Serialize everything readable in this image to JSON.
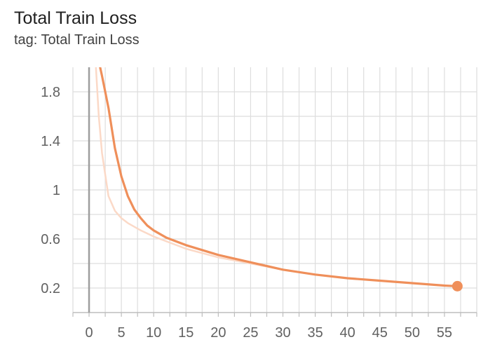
{
  "header": {
    "title": "Total Train Loss",
    "tag": "tag: Total Train Loss"
  },
  "colors": {
    "series": "#ef8f5a",
    "raw_series": "#fbd9c7",
    "grid": "#dddddd",
    "zero_axis": "#9e9e9e",
    "tick_text": "#616161"
  },
  "chart_data": {
    "type": "line",
    "title": "Total Train Loss",
    "xlabel": "",
    "ylabel": "",
    "xlim": [
      -2.5,
      60
    ],
    "ylim": [
      0.0,
      2.0
    ],
    "x_ticks": [
      0,
      5,
      10,
      15,
      20,
      25,
      30,
      35,
      40,
      45,
      50,
      55
    ],
    "x_tick_labels": [
      "0",
      "5",
      "10",
      "15",
      "20",
      "25",
      "30",
      "35",
      "40",
      "45",
      "50",
      "55"
    ],
    "y_ticks": [
      0.2,
      0.6,
      1.0,
      1.4,
      1.8
    ],
    "y_tick_labels": [
      "0.2",
      "0.6",
      "1",
      "1.4",
      "1.8"
    ],
    "y_minor_ticks": [
      0.4,
      0.8,
      1.2,
      1.6
    ],
    "grid": true,
    "series": [
      {
        "role": "smoothed",
        "color": "#ef8f5a",
        "x": [
          1.5,
          2,
          3,
          4,
          5,
          6,
          7,
          8,
          9,
          10,
          12,
          15,
          20,
          25,
          30,
          35,
          40,
          45,
          50,
          55,
          57
        ],
        "y": [
          2.05,
          1.93,
          1.67,
          1.34,
          1.11,
          0.95,
          0.84,
          0.77,
          0.71,
          0.67,
          0.61,
          0.55,
          0.47,
          0.41,
          0.35,
          0.31,
          0.28,
          0.26,
          0.24,
          0.22,
          0.215
        ]
      },
      {
        "role": "raw",
        "color": "#fbd9c7",
        "x": [
          1.0,
          1.5,
          2,
          3,
          4,
          5,
          6,
          8,
          10,
          12,
          15,
          20,
          25,
          30,
          35,
          40,
          45,
          50,
          55,
          57
        ],
        "y": [
          2.05,
          1.6,
          1.3,
          0.95,
          0.83,
          0.77,
          0.73,
          0.67,
          0.62,
          0.58,
          0.52,
          0.45,
          0.4,
          0.35,
          0.31,
          0.28,
          0.26,
          0.24,
          0.22,
          0.215
        ]
      }
    ],
    "last_point": {
      "x": 57,
      "y": 0.215
    }
  }
}
